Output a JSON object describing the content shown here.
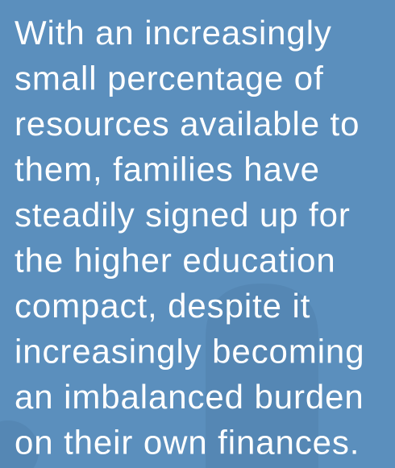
{
  "text_block": {
    "lines": [
      "With an increasingly",
      "small percentage of",
      "resources available to",
      "them, families have",
      "steadily signed up for",
      "the higher education",
      "compact, despite it",
      "increasingly becoming",
      "an imbalanced burden",
      "on their own finances."
    ]
  }
}
